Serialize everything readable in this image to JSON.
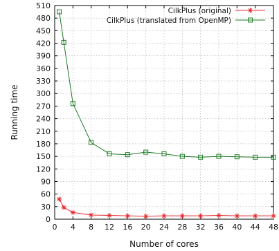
{
  "chart_data": {
    "type": "line",
    "title": "",
    "xlabel": "Number of cores",
    "ylabel": "Running time",
    "xlim": [
      0,
      48
    ],
    "ylim": [
      0,
      510
    ],
    "xticks": [
      0,
      4,
      8,
      12,
      16,
      20,
      24,
      28,
      32,
      36,
      40,
      44,
      48
    ],
    "yticks": [
      0,
      30,
      60,
      90,
      120,
      150,
      180,
      210,
      240,
      270,
      300,
      330,
      360,
      390,
      420,
      450,
      480,
      510
    ],
    "grid": true,
    "legend_position": "top-right",
    "series": [
      {
        "name": "CilkPlus (original)",
        "color": "#e8262b",
        "marker": "star",
        "x": [
          1,
          2,
          4,
          8,
          12,
          16,
          20,
          24,
          28,
          32,
          36,
          40,
          44,
          48
        ],
        "y": [
          48,
          28,
          16,
          10,
          9,
          8,
          7,
          8,
          8,
          8,
          9,
          8,
          8,
          8
        ]
      },
      {
        "name": "CilkPlus (translated from OpenMP)",
        "color": "#1c7a23",
        "marker": "square",
        "x": [
          1,
          2,
          4,
          8,
          12,
          16,
          20,
          24,
          28,
          32,
          36,
          40,
          44,
          48
        ],
        "y": [
          495,
          422,
          276,
          183,
          156,
          154,
          160,
          156,
          150,
          148,
          150,
          149,
          148,
          148
        ]
      }
    ]
  }
}
